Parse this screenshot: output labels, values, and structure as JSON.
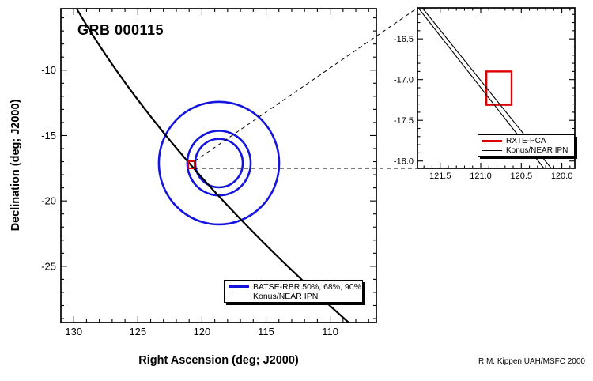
{
  "figure": {
    "credit": "R.M. Kippen UAH/MSFC 2000",
    "background_color": "#ffffff",
    "frame_color": "#000000"
  },
  "main_plot": {
    "title": "GRB 000115",
    "xlabel": "Right Ascension (deg; J2000)",
    "ylabel": "Declination (deg; J2000)",
    "legend": [
      {
        "label": "BATSE-RBR 50%, 68%, 90%",
        "color": "#1414e0",
        "weight": "thick"
      },
      {
        "label": "Konus/NEAR IPN",
        "color": "#000000",
        "weight": "thin"
      }
    ]
  },
  "inset_plot": {
    "legend": [
      {
        "label": "RXTE-PCA",
        "color": "#dd0000",
        "weight": "thick"
      },
      {
        "label": "Konus/NEAR IPN",
        "color": "#000000",
        "weight": "thin"
      }
    ]
  },
  "chart_data": [
    {
      "id": "main",
      "type": "scatter",
      "title": "GRB 000115",
      "xlabel": "Right Ascension (deg; J2000)",
      "ylabel": "Declination (deg; J2000)",
      "xlim": [
        131.0,
        106.4
      ],
      "ylim": [
        -5.3,
        -29.3
      ],
      "xticks": [
        130,
        125,
        120,
        115,
        110
      ],
      "xtick_labels": [
        "130",
        "125",
        "120",
        "115",
        "110"
      ],
      "yticks": [
        -10,
        -15,
        -20,
        -25
      ],
      "ytick_labels": [
        "-10",
        "-15",
        "-20",
        "-25"
      ],
      "minor_tick_step_x": 1,
      "minor_tick_step_y": 1,
      "grid": false,
      "legend_position": "bottom-right",
      "series": [
        {
          "name": "BATSE-RBR 50%, 68%, 90%",
          "kind": "confidence-circles",
          "color": "#1414e0",
          "center": {
            "ra": 118.67,
            "dec": -17.11
          },
          "radii_deg": [
            1.85,
            2.47,
            4.69
          ],
          "levels": [
            "50%",
            "68%",
            "90%"
          ]
        },
        {
          "name": "Konus/NEAR IPN",
          "kind": "annulus-arc",
          "color": "#000000",
          "bezier": {
            "start": {
              "ra": 129.77,
              "dec": -5.3
            },
            "control": {
              "ra": 122.86,
              "dec": -16.88
            },
            "end": {
              "ra": 108.56,
              "dec": -29.3
            }
          }
        },
        {
          "name": "RXTE-PCA",
          "kind": "error-box",
          "color": "#dd0000",
          "ra_range": [
            121.07,
            120.58
          ],
          "dec_range": [
            -16.97,
            -17.51
          ]
        }
      ]
    },
    {
      "id": "inset",
      "type": "scatter",
      "title": "",
      "xlabel": "",
      "ylabel": "",
      "xlim": [
        121.78,
        119.84
      ],
      "ylim": [
        -16.12,
        -18.09
      ],
      "xticks": [
        121.5,
        121.0,
        120.5,
        120.0
      ],
      "xtick_labels": [
        "121.5",
        "121.0",
        "120.5",
        "120.0"
      ],
      "yticks": [
        -16.5,
        -17.0,
        -17.5,
        -18.0
      ],
      "ytick_labels": [
        "-16.5",
        "-17.0",
        "-17.5",
        "-18.0"
      ],
      "minor_tick_step_x": 0.1,
      "minor_tick_step_y": 0.1,
      "grid": false,
      "legend_position": "bottom-right",
      "series": [
        {
          "name": "RXTE-PCA",
          "kind": "error-box",
          "color": "#dd0000",
          "ra_range": [
            120.93,
            120.62
          ],
          "dec_range": [
            -16.9,
            -17.31
          ]
        },
        {
          "name": "Konus/NEAR IPN",
          "kind": "line-pair",
          "color": "#000000",
          "lines": [
            {
              "from": {
                "ra": 121.77,
                "dec": -16.12
              },
              "to": {
                "ra": 120.22,
                "dec": -18.09
              }
            },
            {
              "from": {
                "ra": 121.72,
                "dec": -16.12
              },
              "to": {
                "ra": 120.13,
                "dec": -18.09
              }
            }
          ]
        }
      ]
    }
  ]
}
